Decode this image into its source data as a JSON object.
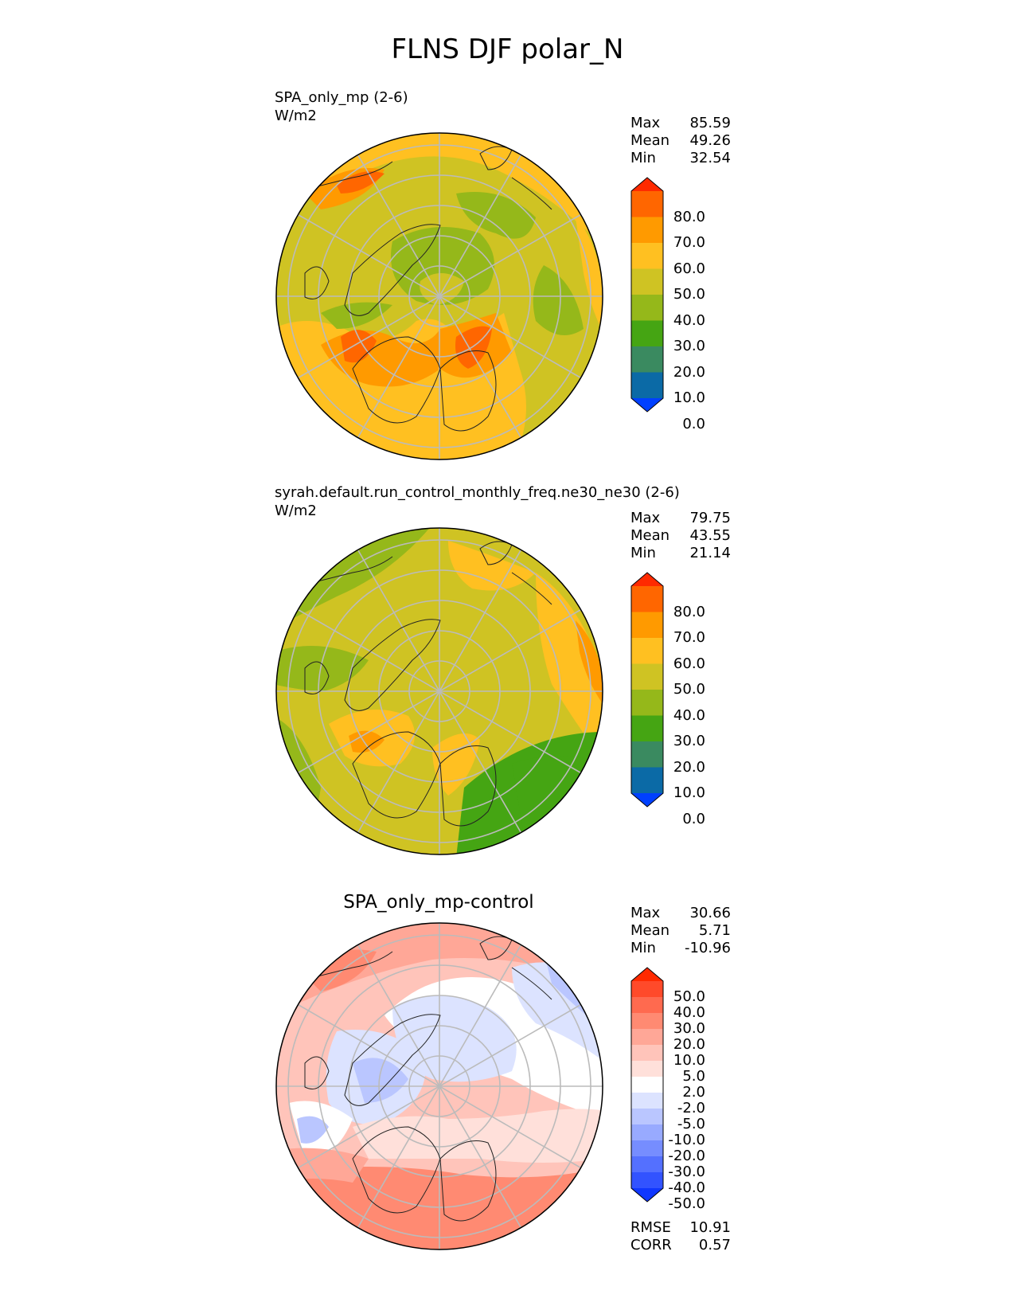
{
  "title": "FLNS DJF polar_N",
  "panels": [
    {
      "label": "SPA_only_mp (2-6)",
      "units": "W/m2",
      "stats": {
        "max_label": "Max",
        "max": "85.59",
        "mean_label": "Mean",
        "mean": "49.26",
        "min_label": "Min",
        "min": "32.54"
      }
    },
    {
      "label": "syrah.default.run_control_monthly_freq.ne30_ne30 (2-6)",
      "units": "W/m2",
      "stats": {
        "max_label": "Max",
        "max": "79.75",
        "mean_label": "Mean",
        "mean": "43.55",
        "min_label": "Min",
        "min": "21.14"
      }
    },
    {
      "label": "SPA_only_mp-control",
      "stats": {
        "max_label": "Max",
        "max": "30.66",
        "mean_label": "Mean",
        "mean": "5.71",
        "min_label": "Min",
        "min": "-10.96"
      },
      "metrics": {
        "rmse_label": "RMSE",
        "rmse": "10.91",
        "corr_label": "CORR",
        "corr": "0.57"
      }
    }
  ],
  "colorbar_main": {
    "labels": [
      "80.0",
      "70.0",
      "60.0",
      "50.0",
      "40.0",
      "30.0",
      "20.0",
      "10.0",
      "0.0"
    ],
    "colors": [
      "#ff2a00",
      "#ff6600",
      "#ff9a00",
      "#ffc021",
      "#cfc323",
      "#95b81a",
      "#45a513",
      "#3a8a60",
      "#0b6aa6",
      "#0040ff"
    ]
  },
  "colorbar_diff": {
    "labels": [
      "50.0",
      "40.0",
      "30.0",
      "20.0",
      "10.0",
      "5.0",
      "2.0",
      "-2.0",
      "-5.0",
      "-10.0",
      "-20.0",
      "-30.0",
      "-40.0",
      "-50.0"
    ],
    "colors": [
      "#ff2a00",
      "#ff4a2a",
      "#ff6a4f",
      "#ff8a72",
      "#ffa797",
      "#ffc4ba",
      "#ffe0da",
      "#ffffff",
      "#dce3ff",
      "#bac6ff",
      "#98aaff",
      "#768dff",
      "#5470ff",
      "#3253ff",
      "#1037ff"
    ]
  },
  "chart_data": [
    {
      "type": "heatmap",
      "title": "SPA_only_mp (2-6)",
      "units": "W/m2",
      "projection": "north polar stereographic",
      "colorbar_ticks": [
        80,
        70,
        60,
        50,
        40,
        30,
        20,
        10,
        0
      ],
      "max": 85.59,
      "mean": 49.26,
      "min": 32.54
    },
    {
      "type": "heatmap",
      "title": "syrah.default.run_control_monthly_freq.ne30_ne30 (2-6)",
      "units": "W/m2",
      "projection": "north polar stereographic",
      "colorbar_ticks": [
        80,
        70,
        60,
        50,
        40,
        30,
        20,
        10,
        0
      ],
      "max": 79.75,
      "mean": 43.55,
      "min": 21.14
    },
    {
      "type": "heatmap",
      "title": "SPA_only_mp-control",
      "projection": "north polar stereographic",
      "colorbar_ticks": [
        50,
        40,
        30,
        20,
        10,
        5,
        2,
        -2,
        -5,
        -10,
        -20,
        -30,
        -40,
        -50
      ],
      "max": 30.66,
      "mean": 5.71,
      "min": -10.96,
      "rmse": 10.91,
      "corr": 0.57
    }
  ]
}
